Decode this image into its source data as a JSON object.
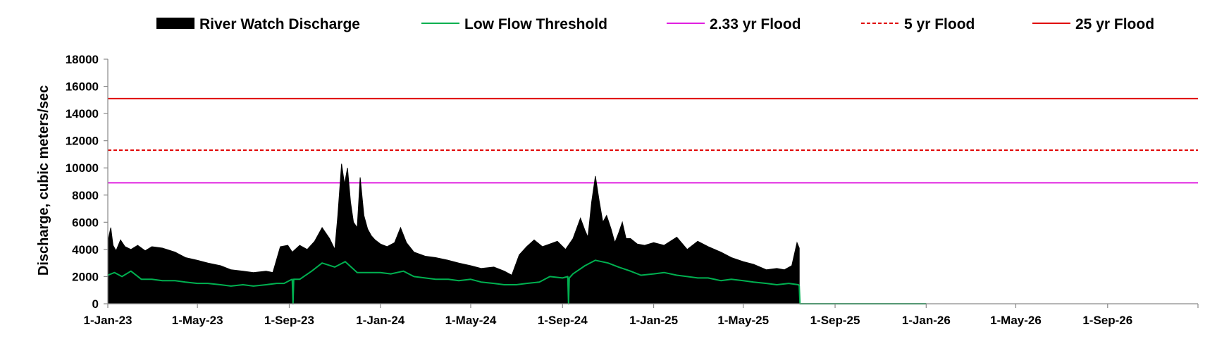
{
  "chart_data": {
    "type": "area",
    "title": "",
    "xlabel": "",
    "ylabel": "Discharge, cubic meters/sec",
    "ylim": [
      0,
      18000
    ],
    "yticks": [
      0,
      2000,
      4000,
      6000,
      8000,
      10000,
      12000,
      14000,
      16000,
      18000
    ],
    "ytick_labels": [
      "0",
      "2000",
      "4000",
      "6000",
      "8000",
      "10000",
      "12000",
      "14000",
      "16000",
      "18000"
    ],
    "xlim": [
      "2023-01-01",
      "2026-12-31"
    ],
    "xticks": [
      "2023-01-01",
      "2023-05-01",
      "2023-09-01",
      "2024-01-01",
      "2024-05-01",
      "2024-09-01",
      "2025-01-01",
      "2025-05-01",
      "2025-09-01",
      "2026-01-01",
      "2026-05-01",
      "2026-09-01"
    ],
    "xtick_labels": [
      "1-Jan-23",
      "1-May-23",
      "1-Sep-23",
      "1-Jan-24",
      "1-May-24",
      "1-Sep-24",
      "1-Jan-25",
      "1-May-25",
      "1-Sep-25",
      "1-Jan-26",
      "1-May-26",
      "1-Sep-26"
    ],
    "grid": false,
    "legend_position": "top",
    "legend": [
      {
        "name": "River Watch Discharge",
        "style": "area",
        "color": "#000000"
      },
      {
        "name": "Low Flow Threshold",
        "style": "line",
        "color": "#00B050"
      },
      {
        "name": "2.33 yr Flood",
        "style": "line",
        "color": "#E020E0"
      },
      {
        "name": "5 yr Flood",
        "style": "dashed",
        "color": "#E00000"
      },
      {
        "name": "25 yr Flood",
        "style": "line",
        "color": "#E00000"
      }
    ],
    "thresholds": [
      {
        "name": "2.33 yr Flood",
        "value": 8900,
        "color": "#E020E0",
        "dash": false
      },
      {
        "name": "5 yr Flood",
        "value": 11300,
        "color": "#E00000",
        "dash": true
      },
      {
        "name": "25 yr Flood",
        "value": 15100,
        "color": "#E00000",
        "dash": false
      }
    ],
    "series": [
      {
        "name": "River Watch Discharge",
        "color": "#000000",
        "x": [
          "2023-01-01",
          "2023-01-05",
          "2023-01-08",
          "2023-01-12",
          "2023-01-18",
          "2023-01-24",
          "2023-02-01",
          "2023-02-10",
          "2023-02-20",
          "2023-03-01",
          "2023-03-15",
          "2023-04-01",
          "2023-04-15",
          "2023-05-01",
          "2023-05-15",
          "2023-06-01",
          "2023-06-15",
          "2023-07-01",
          "2023-07-15",
          "2023-08-01",
          "2023-08-10",
          "2023-08-20",
          "2023-08-30",
          "2023-09-05",
          "2023-09-15",
          "2023-09-25",
          "2023-10-05",
          "2023-10-15",
          "2023-10-25",
          "2023-11-01",
          "2023-11-05",
          "2023-11-10",
          "2023-11-14",
          "2023-11-18",
          "2023-11-22",
          "2023-11-26",
          "2023-12-01",
          "2023-12-05",
          "2023-12-10",
          "2023-12-15",
          "2023-12-20",
          "2023-12-25",
          "2024-01-01",
          "2024-01-10",
          "2024-01-20",
          "2024-01-28",
          "2024-02-05",
          "2024-02-15",
          "2024-03-01",
          "2024-03-15",
          "2024-04-01",
          "2024-04-15",
          "2024-05-01",
          "2024-05-15",
          "2024-06-01",
          "2024-06-15",
          "2024-06-25",
          "2024-07-05",
          "2024-07-15",
          "2024-07-25",
          "2024-08-05",
          "2024-08-15",
          "2024-08-25",
          "2024-09-05",
          "2024-09-15",
          "2024-09-25",
          "2024-10-01",
          "2024-10-05",
          "2024-10-10",
          "2024-10-15",
          "2024-10-20",
          "2024-10-25",
          "2024-10-30",
          "2024-11-05",
          "2024-11-10",
          "2024-11-15",
          "2024-11-20",
          "2024-11-25",
          "2024-12-01",
          "2024-12-10",
          "2024-12-20",
          "2025-01-01",
          "2025-01-15",
          "2025-02-01",
          "2025-02-15",
          "2025-03-01",
          "2025-03-15",
          "2025-04-01",
          "2025-04-15",
          "2025-05-01",
          "2025-05-15",
          "2025-06-01",
          "2025-06-15",
          "2025-06-25",
          "2025-07-05",
          "2025-07-12",
          "2025-07-15"
        ],
        "values": [
          4600,
          5600,
          4300,
          3900,
          4700,
          4200,
          4000,
          4300,
          3900,
          4200,
          4100,
          3800,
          3400,
          3200,
          3000,
          2800,
          2500,
          2400,
          2300,
          2400,
          2300,
          4200,
          4300,
          3800,
          4300,
          4000,
          4600,
          5600,
          4800,
          4000,
          6500,
          10300,
          8800,
          10000,
          7500,
          6000,
          5600,
          9300,
          6500,
          5500,
          5000,
          4700,
          4400,
          4200,
          4500,
          5600,
          4500,
          3800,
          3500,
          3400,
          3200,
          3000,
          2800,
          2600,
          2700,
          2400,
          2100,
          3600,
          4200,
          4700,
          4200,
          4400,
          4600,
          4000,
          4800,
          6300,
          5400,
          4900,
          7500,
          9400,
          7600,
          6000,
          6500,
          5500,
          4500,
          5200,
          6000,
          4800,
          4800,
          4400,
          4300,
          4500,
          4300,
          4900,
          4000,
          4600,
          4200,
          3800,
          3400,
          3100,
          2900,
          2500,
          2600,
          2500,
          2800,
          4500,
          4100
        ],
        "end": "2025-07-15"
      },
      {
        "name": "Low Flow Threshold",
        "color": "#00B050",
        "x": [
          "2023-01-01",
          "2023-01-10",
          "2023-01-20",
          "2023-02-01",
          "2023-02-15",
          "2023-03-01",
          "2023-03-15",
          "2023-04-01",
          "2023-04-15",
          "2023-05-01",
          "2023-05-15",
          "2023-06-01",
          "2023-06-15",
          "2023-07-01",
          "2023-07-15",
          "2023-08-01",
          "2023-08-15",
          "2023-08-25",
          "2023-09-01",
          "2023-09-05",
          "2023-09-06",
          "2023-09-07",
          "2023-09-15",
          "2023-10-01",
          "2023-10-15",
          "2023-11-01",
          "2023-11-15",
          "2023-12-01",
          "2023-12-15",
          "2024-01-01",
          "2024-01-15",
          "2024-02-01",
          "2024-02-15",
          "2024-03-01",
          "2024-03-15",
          "2024-04-01",
          "2024-04-15",
          "2024-05-01",
          "2024-05-15",
          "2024-06-01",
          "2024-06-15",
          "2024-07-01",
          "2024-07-15",
          "2024-08-01",
          "2024-08-15",
          "2024-09-01",
          "2024-09-08",
          "2024-09-09",
          "2024-09-10",
          "2024-09-15",
          "2024-10-01",
          "2024-10-15",
          "2024-11-01",
          "2024-11-15",
          "2024-12-01",
          "2024-12-15",
          "2025-01-01",
          "2025-01-15",
          "2025-02-01",
          "2025-02-15",
          "2025-03-01",
          "2025-03-15",
          "2025-04-01",
          "2025-04-15",
          "2025-05-01",
          "2025-05-15",
          "2025-06-01",
          "2025-06-15",
          "2025-07-01",
          "2025-07-14",
          "2025-07-15",
          "2025-07-16",
          "2026-01-01"
        ],
        "values": [
          2100,
          2300,
          2000,
          2400,
          1800,
          1800,
          1700,
          1700,
          1600,
          1500,
          1500,
          1400,
          1300,
          1400,
          1300,
          1400,
          1500,
          1500,
          1700,
          1800,
          0,
          1800,
          1800,
          2400,
          3000,
          2700,
          3100,
          2300,
          2300,
          2300,
          2200,
          2400,
          2000,
          1900,
          1800,
          1800,
          1700,
          1800,
          1600,
          1500,
          1400,
          1400,
          1500,
          1600,
          2000,
          1900,
          2000,
          0,
          1900,
          2200,
          2800,
          3200,
          3000,
          2700,
          2400,
          2100,
          2200,
          2300,
          2100,
          2000,
          1900,
          1900,
          1700,
          1800,
          1700,
          1600,
          1500,
          1400,
          1500,
          1400,
          1300,
          0,
          0
        ]
      }
    ]
  }
}
